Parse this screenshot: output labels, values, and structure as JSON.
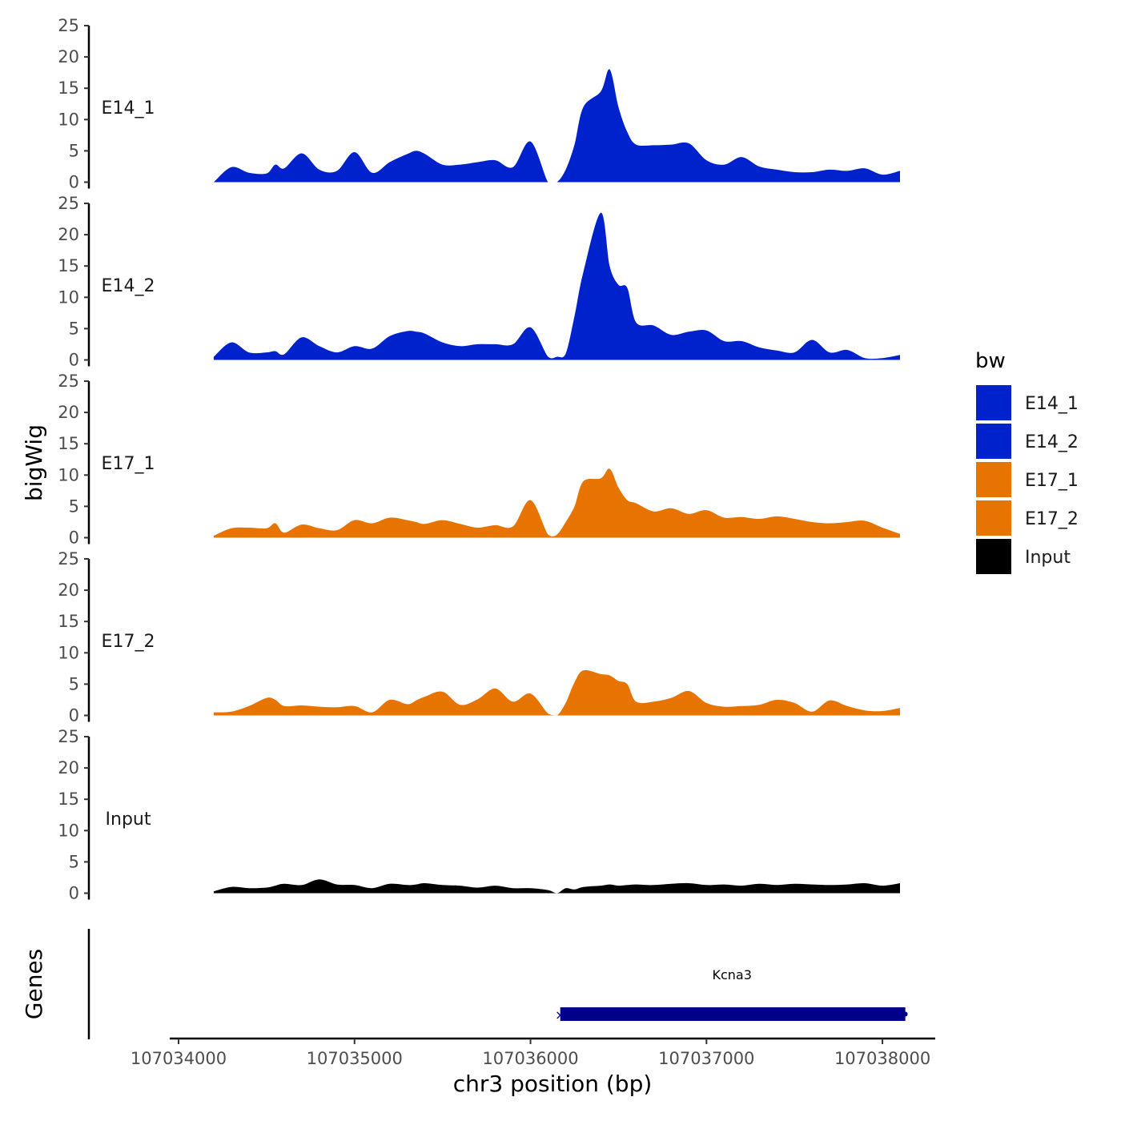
{
  "chart_data": {
    "type": "area",
    "ylabel": "bigWig",
    "xlabel": "chr3 position (bp)",
    "gene_track_label": "Genes",
    "ylim": [
      0,
      25
    ],
    "y_ticks": [
      0,
      5,
      10,
      15,
      20,
      25
    ],
    "xlim": [
      107033950,
      107038300
    ],
    "x_ticks": [
      107034000,
      107035000,
      107036000,
      107037000,
      107038000
    ],
    "x_tick_labels": [
      "107034000",
      "107035000",
      "107036000",
      "107037000",
      "107038000"
    ],
    "x": [
      107034200,
      107034300,
      107034400,
      107034500,
      107034550,
      107034600,
      107034700,
      107034800,
      107034900,
      107035000,
      107035100,
      107035200,
      107035300,
      107035350,
      107035400,
      107035500,
      107035600,
      107035700,
      107035800,
      107035900,
      107036000,
      107036100,
      107036150,
      107036200,
      107036250,
      107036300,
      107036400,
      107036450,
      107036500,
      107036550,
      107036600,
      107036700,
      107036800,
      107036900,
      107037000,
      107037100,
      107037200,
      107037300,
      107037400,
      107037500,
      107037600,
      107037700,
      107037800,
      107037900,
      107038000,
      107038100
    ],
    "series": [
      {
        "name": "E14_1",
        "color": "#0022CC",
        "values": [
          0,
          2.4,
          1.5,
          1.4,
          2.8,
          2.2,
          4.6,
          2,
          1.8,
          4.8,
          1.5,
          3.2,
          4.5,
          5,
          4.5,
          2.8,
          2.8,
          3.2,
          3.5,
          2.4,
          6.5,
          0,
          0,
          2,
          6,
          12,
          14.5,
          18,
          12,
          8,
          6,
          5.9,
          6,
          6.2,
          3.5,
          2.8,
          4,
          2.5,
          2,
          1.6,
          1.6,
          2,
          1.8,
          2.2,
          1.2,
          1.8
        ]
      },
      {
        "name": "E14_2",
        "color": "#0022CC",
        "values": [
          0.5,
          2.8,
          1.2,
          1.2,
          1.4,
          0.9,
          3.6,
          2.2,
          1.2,
          2.2,
          1.8,
          3.8,
          4.6,
          4.5,
          4.2,
          2.8,
          2.2,
          2.5,
          2.5,
          2.5,
          5.2,
          0.5,
          0.5,
          1,
          7,
          14,
          23.5,
          15,
          12,
          11.5,
          6,
          5.5,
          4,
          4.5,
          4.7,
          3,
          3,
          2,
          1.5,
          1.2,
          3.2,
          1.2,
          1.6,
          0.3,
          0.3,
          0.8
        ]
      },
      {
        "name": "E17_1",
        "color": "#E87400",
        "values": [
          0.3,
          1.5,
          1.6,
          1.5,
          2.3,
          0.8,
          2.1,
          1.5,
          1.2,
          2.8,
          2.3,
          3.2,
          2.8,
          2.5,
          2.2,
          2.8,
          2.2,
          1.6,
          2,
          1.8,
          6,
          0.5,
          0.5,
          2.5,
          5,
          9,
          9.5,
          11,
          8,
          6,
          5.5,
          4.2,
          4.7,
          3.8,
          4.4,
          3.2,
          3.3,
          3,
          3.4,
          3,
          2.5,
          2.3,
          2.5,
          2.7,
          1.6,
          0.6
        ]
      },
      {
        "name": "E17_2",
        "color": "#E87400",
        "values": [
          0.5,
          0.6,
          1.5,
          2.8,
          2.5,
          1.5,
          1.6,
          1.4,
          1.3,
          1.5,
          0.5,
          2.5,
          1.8,
          2.4,
          3,
          3.8,
          1.7,
          2.6,
          4.3,
          2.2,
          3.5,
          0.3,
          0,
          2,
          5.3,
          7.2,
          6.6,
          6.4,
          5.5,
          5,
          2.2,
          2.2,
          2.8,
          3.9,
          2,
          1.4,
          1.5,
          1.7,
          2.5,
          2,
          0.6,
          2.4,
          1.5,
          0.8,
          0.7,
          1.2
        ]
      },
      {
        "name": "Input",
        "color": "#000000",
        "values": [
          0.3,
          1,
          0.8,
          0.9,
          1.2,
          1.5,
          1.3,
          2.2,
          1.4,
          1.3,
          0.8,
          1.5,
          1.3,
          1.4,
          1.6,
          1.3,
          1.2,
          0.9,
          1.2,
          0.8,
          0.8,
          0.5,
          0,
          0.8,
          0.6,
          1,
          1.2,
          1.4,
          1.2,
          1.3,
          1.4,
          1.3,
          1.5,
          1.6,
          1.3,
          1.4,
          1.2,
          1.5,
          1.3,
          1.5,
          1.4,
          1.3,
          1.4,
          1.6,
          1.2,
          1.6
        ]
      }
    ],
    "legend": {
      "title": "bw",
      "position": "right",
      "entries": [
        {
          "label": "E14_1",
          "color": "#0022CC"
        },
        {
          "label": "E14_2",
          "color": "#0022CC"
        },
        {
          "label": "E17_1",
          "color": "#E87400"
        },
        {
          "label": "E17_2",
          "color": "#E87400"
        },
        {
          "label": "Input",
          "color": "#000000"
        }
      ]
    },
    "genes": [
      {
        "name": "Kcna3",
        "start": 107036160,
        "end": 107038130,
        "color": "#00008B",
        "strand_marker": "×"
      }
    ]
  }
}
